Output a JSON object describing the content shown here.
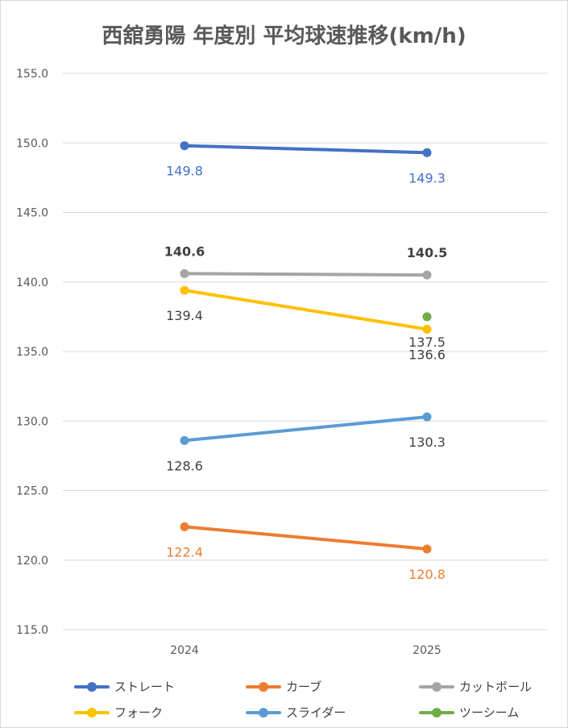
{
  "title": "西舘勇陽 年度別 平均球速推移(km/h)",
  "chart_data": {
    "type": "line",
    "title": "西舘勇陽 年度別 平均球速推移(km/h)",
    "categories": [
      "2024",
      "2025"
    ],
    "ylim": [
      115.0,
      155.0
    ],
    "yticks": [
      "155.0",
      "150.0",
      "145.0",
      "140.0",
      "135.0",
      "130.0",
      "125.0",
      "120.0",
      "115.0"
    ],
    "grid": true,
    "legend_position": "bottom",
    "series": [
      {
        "name": "ストレート",
        "color": "#4472c4",
        "values": [
          149.8,
          149.3
        ],
        "labels": [
          "149.8",
          "149.3"
        ],
        "label_color": "#4472c4",
        "label_bold": false,
        "label_pos": "below"
      },
      {
        "name": "カーブ",
        "color": "#ed7d31",
        "values": [
          122.4,
          120.8
        ],
        "labels": [
          "122.4",
          "120.8"
        ],
        "label_color": "#ed7d31",
        "label_bold": false,
        "label_pos": "below"
      },
      {
        "name": "カットボール",
        "color": "#a5a5a5",
        "values": [
          140.6,
          140.5
        ],
        "labels": [
          "140.6",
          "140.5"
        ],
        "label_color": "#404040",
        "label_bold": true,
        "label_pos": "above"
      },
      {
        "name": "フォーク",
        "color": "#ffc000",
        "values": [
          139.4,
          136.6
        ],
        "labels": [
          "139.4",
          "136.6"
        ],
        "label_color": "#404040",
        "label_bold": false,
        "label_pos": "below"
      },
      {
        "name": "スライダー",
        "color": "#5b9bd5",
        "values": [
          128.6,
          130.3
        ],
        "labels": [
          "128.6",
          "130.3"
        ],
        "label_color": "#404040",
        "label_bold": false,
        "label_pos": "below"
      },
      {
        "name": "ツーシーム",
        "color": "#70ad47",
        "values": [
          null,
          137.5
        ],
        "labels": [
          null,
          "137.5"
        ],
        "label_color": "#404040",
        "label_bold": false,
        "label_pos": "below"
      }
    ]
  }
}
